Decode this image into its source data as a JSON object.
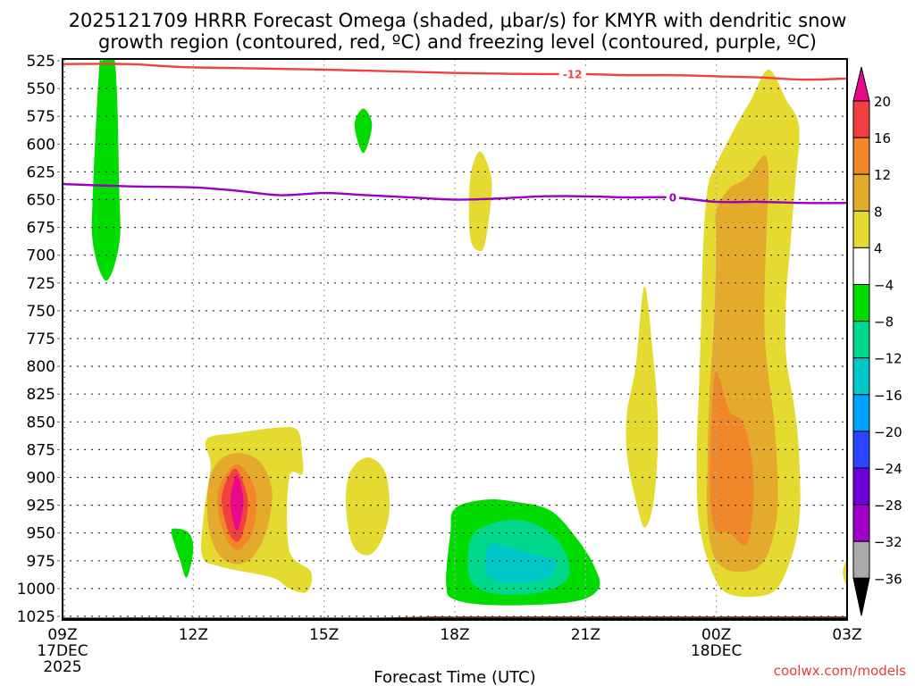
{
  "chart_data": {
    "type": "heatmap",
    "title_lines": [
      "2025121709 HRRR Forecast Omega (shaded, μbar/s) for KMYR with dendritic snow",
      "growth region (contoured, red, ºC) and freezing level (contoured, purple, ºC)"
    ],
    "xlabel": "Forecast Time (UTC)",
    "ylabel": "",
    "x_range_hours": [
      0,
      18
    ],
    "x_ticks": [
      {
        "hour": 0,
        "lines": [
          "09Z",
          "17DEC",
          "2025"
        ]
      },
      {
        "hour": 3,
        "lines": [
          "12Z"
        ]
      },
      {
        "hour": 6,
        "lines": [
          "15Z"
        ]
      },
      {
        "hour": 9,
        "lines": [
          "18Z"
        ]
      },
      {
        "hour": 12,
        "lines": [
          "21Z"
        ]
      },
      {
        "hour": 15,
        "lines": [
          "00Z",
          "18DEC"
        ]
      },
      {
        "hour": 18,
        "lines": [
          "03Z"
        ]
      }
    ],
    "y_range_hpa": [
      525,
      1030
    ],
    "y_ticks": [
      "525",
      "550",
      "575",
      "600",
      "625",
      "650",
      "675",
      "700",
      "725",
      "750",
      "775",
      "800",
      "825",
      "850",
      "875",
      "900",
      "925",
      "950",
      "975",
      "1000",
      "1025"
    ],
    "grid": true,
    "colorbar": {
      "placement": "right",
      "levels": [
        -36,
        -32,
        -28,
        -24,
        -20,
        -16,
        -12,
        -8,
        -4,
        4,
        8,
        12,
        16,
        20
      ],
      "tick_labels": [
        "20",
        "16",
        "12",
        "8",
        "4",
        "−4",
        "−8",
        "−12",
        "−16",
        "−20",
        "−24",
        "−28",
        "−32",
        "−36"
      ],
      "colors_top_to_bottom": [
        "#e8088c",
        "#f04040",
        "#f0882a",
        "#e4aa2c",
        "#e4da30",
        "#ffffff",
        "#00dc00",
        "#00d88c",
        "#00c8c8",
        "#00a0ff",
        "#2846ff",
        "#6e00dc",
        "#a000c8",
        "#aaaaaa",
        "#000000"
      ]
    },
    "regions": [
      {
        "name": "green-column-early",
        "level": -4,
        "color": "#00dc00",
        "pts": [
          [
            0.9,
            525
          ],
          [
            1.2,
            525
          ],
          [
            1.3,
            640
          ],
          [
            1.3,
            690
          ],
          [
            1.0,
            723
          ],
          [
            0.7,
            690
          ],
          [
            0.7,
            640
          ],
          [
            0.85,
            525
          ]
        ]
      },
      {
        "name": "green-diamond-16z",
        "level": -4,
        "color": "#00dc00",
        "pts": [
          [
            6.9,
            568
          ],
          [
            7.1,
            583
          ],
          [
            6.9,
            608
          ],
          [
            6.7,
            583
          ]
        ]
      },
      {
        "name": "green-blob-12z",
        "level": -4,
        "color": "#00dc00",
        "pts": [
          [
            2.9,
            950
          ],
          [
            2.6,
            946
          ],
          [
            2.5,
            950
          ],
          [
            2.7,
            975
          ],
          [
            2.85,
            990
          ],
          [
            3.0,
            965
          ]
        ]
      },
      {
        "name": "yellow-18z-mid",
        "level": 4,
        "color": "#e4da30",
        "pts": [
          [
            9.55,
            607
          ],
          [
            9.75,
            618
          ],
          [
            9.85,
            640
          ],
          [
            9.7,
            688
          ],
          [
            9.55,
            696
          ],
          [
            9.35,
            683
          ],
          [
            9.35,
            632
          ]
        ]
      },
      {
        "name": "yellow-13z",
        "level": 4,
        "color": "#e4da30",
        "pts": [
          [
            3.3,
            866
          ],
          [
            4.0,
            860
          ],
          [
            5.0,
            855
          ],
          [
            5.4,
            858
          ],
          [
            5.5,
            880
          ],
          [
            5.5,
            897
          ],
          [
            5.2,
            900
          ],
          [
            5.2,
            965
          ],
          [
            5.7,
            985
          ],
          [
            5.6,
            1003
          ],
          [
            5.2,
            1000
          ],
          [
            4.8,
            990
          ],
          [
            3.6,
            980
          ],
          [
            3.2,
            970
          ],
          [
            3.25,
            930
          ],
          [
            3.4,
            890
          ]
        ]
      },
      {
        "name": "orange1-13z",
        "level": 8,
        "color": "#e4aa2c",
        "pts": [
          [
            4.0,
            878
          ],
          [
            4.5,
            885
          ],
          [
            4.8,
            910
          ],
          [
            4.7,
            945
          ],
          [
            4.4,
            970
          ],
          [
            4.0,
            978
          ],
          [
            3.6,
            970
          ],
          [
            3.35,
            945
          ],
          [
            3.35,
            905
          ],
          [
            3.6,
            885
          ]
        ]
      },
      {
        "name": "orange2-13z",
        "level": 12,
        "color": "#f0882a",
        "pts": [
          [
            4.0,
            888
          ],
          [
            4.3,
            900
          ],
          [
            4.45,
            920
          ],
          [
            4.35,
            950
          ],
          [
            4.0,
            965
          ],
          [
            3.7,
            950
          ],
          [
            3.55,
            920
          ],
          [
            3.7,
            900
          ]
        ]
      },
      {
        "name": "red-13z",
        "level": 16,
        "color": "#f04040",
        "pts": [
          [
            4.0,
            893
          ],
          [
            4.25,
            920
          ],
          [
            4.15,
            948
          ],
          [
            4.0,
            958
          ],
          [
            3.8,
            948
          ],
          [
            3.65,
            920
          ],
          [
            3.8,
            900
          ]
        ]
      },
      {
        "name": "magenta-13z",
        "level": 20,
        "color": "#e8088c",
        "pts": [
          [
            4.0,
            898
          ],
          [
            4.15,
            922
          ],
          [
            4.0,
            948
          ],
          [
            3.85,
            922
          ]
        ]
      },
      {
        "name": "yellow-16z-low",
        "level": 4,
        "color": "#e4da30",
        "pts": [
          [
            7.0,
            882
          ],
          [
            7.4,
            895
          ],
          [
            7.5,
            930
          ],
          [
            7.3,
            958
          ],
          [
            7.0,
            970
          ],
          [
            6.65,
            960
          ],
          [
            6.5,
            925
          ],
          [
            6.6,
            895
          ]
        ]
      },
      {
        "name": "yellow-22z",
        "level": 4,
        "color": "#e4da30",
        "pts": [
          [
            13.35,
            728
          ],
          [
            13.55,
            790
          ],
          [
            13.65,
            840
          ],
          [
            13.65,
            880
          ],
          [
            13.55,
            925
          ],
          [
            13.35,
            945
          ],
          [
            13.15,
            920
          ],
          [
            12.95,
            880
          ],
          [
            12.95,
            842
          ],
          [
            13.15,
            800
          ]
        ]
      },
      {
        "name": "green-19z",
        "level": -4,
        "color": "#00dc00",
        "pts": [
          [
            9.0,
            928
          ],
          [
            9.7,
            920
          ],
          [
            10.4,
            922
          ],
          [
            11.2,
            930
          ],
          [
            11.8,
            955
          ],
          [
            12.2,
            980
          ],
          [
            12.3,
            1000
          ],
          [
            11.7,
            1012
          ],
          [
            10.0,
            1015
          ],
          [
            9.0,
            1010
          ],
          [
            8.8,
            995
          ],
          [
            8.9,
            950
          ]
        ]
      },
      {
        "name": "teal-19z",
        "level": -8,
        "color": "#00d88c",
        "pts": [
          [
            9.5,
            948
          ],
          [
            10.3,
            938
          ],
          [
            11.0,
            945
          ],
          [
            11.5,
            965
          ],
          [
            11.6,
            990
          ],
          [
            11.0,
            1003
          ],
          [
            10.0,
            1005
          ],
          [
            9.4,
            995
          ],
          [
            9.3,
            970
          ]
        ]
      },
      {
        "name": "cyan-19z",
        "level": -12,
        "color": "#00c8c8",
        "pts": [
          [
            9.85,
            960
          ],
          [
            10.7,
            968
          ],
          [
            11.3,
            975
          ],
          [
            11.15,
            990
          ],
          [
            10.4,
            995
          ],
          [
            9.8,
            990
          ],
          [
            9.7,
            975
          ]
        ]
      },
      {
        "name": "yellow-00z",
        "level": 4,
        "color": "#e4da30",
        "pts": [
          [
            16.2,
            533
          ],
          [
            16.6,
            560
          ],
          [
            16.9,
            585
          ],
          [
            16.8,
            640
          ],
          [
            16.7,
            690
          ],
          [
            16.6,
            740
          ],
          [
            16.6,
            790
          ],
          [
            16.8,
            840
          ],
          [
            16.9,
            880
          ],
          [
            16.9,
            940
          ],
          [
            16.6,
            985
          ],
          [
            16.2,
            1005
          ],
          [
            15.3,
            1005
          ],
          [
            14.9,
            985
          ],
          [
            14.6,
            940
          ],
          [
            14.55,
            880
          ],
          [
            14.6,
            820
          ],
          [
            14.65,
            760
          ],
          [
            14.7,
            690
          ],
          [
            14.8,
            640
          ],
          [
            15.0,
            618
          ],
          [
            15.5,
            580
          ],
          [
            15.8,
            560
          ]
        ]
      },
      {
        "name": "orange1-00z",
        "level": 8,
        "color": "#e4aa2c",
        "pts": [
          [
            16.1,
            610
          ],
          [
            16.2,
            630
          ],
          [
            16.15,
            680
          ],
          [
            16.1,
            760
          ],
          [
            16.2,
            810
          ],
          [
            16.35,
            860
          ],
          [
            16.4,
            930
          ],
          [
            16.1,
            975
          ],
          [
            15.5,
            985
          ],
          [
            15.0,
            975
          ],
          [
            14.8,
            940
          ],
          [
            14.8,
            880
          ],
          [
            14.85,
            820
          ],
          [
            14.95,
            760
          ],
          [
            15.0,
            690
          ],
          [
            15.0,
            660
          ],
          [
            15.3,
            640
          ],
          [
            15.7,
            630
          ]
        ]
      },
      {
        "name": "orange2-00z",
        "level": 12,
        "color": "#f0882a",
        "pts": [
          [
            15.0,
            805
          ],
          [
            15.3,
            840
          ],
          [
            15.6,
            850
          ],
          [
            15.8,
            880
          ],
          [
            15.85,
            920
          ],
          [
            15.7,
            960
          ],
          [
            15.3,
            950
          ],
          [
            14.95,
            945
          ],
          [
            14.85,
            900
          ],
          [
            14.9,
            840
          ]
        ]
      },
      {
        "name": "yellow-edge-03z",
        "level": 4,
        "color": "#e4da30",
        "pts": [
          [
            18.0,
            975
          ],
          [
            17.9,
            985
          ],
          [
            18.0,
            998
          ]
        ]
      }
    ],
    "contours": [
      {
        "name": "dendritic-snow-growth",
        "value": -12,
        "label": "-12",
        "color": "#f04040",
        "label_hour": 11.7,
        "pts": [
          [
            0,
            528
          ],
          [
            1.5,
            528
          ],
          [
            3,
            531
          ],
          [
            6,
            533
          ],
          [
            9,
            536
          ],
          [
            11,
            537
          ],
          [
            12,
            537
          ],
          [
            13,
            538
          ],
          [
            14,
            538
          ],
          [
            15,
            539
          ],
          [
            16,
            540
          ],
          [
            17,
            542
          ],
          [
            18,
            541
          ]
        ]
      },
      {
        "name": "freezing-level",
        "value": 0,
        "label": "0",
        "color": "#9a00c0",
        "label_hour": 14.0,
        "pts": [
          [
            0,
            636
          ],
          [
            1.5,
            638
          ],
          [
            3,
            639
          ],
          [
            4,
            642
          ],
          [
            5,
            646
          ],
          [
            6,
            644
          ],
          [
            7,
            646
          ],
          [
            8,
            648
          ],
          [
            9,
            650
          ],
          [
            10,
            649
          ],
          [
            11,
            647
          ],
          [
            12,
            647
          ],
          [
            13,
            648
          ],
          [
            14,
            648
          ],
          [
            15,
            652
          ],
          [
            16,
            652
          ],
          [
            17,
            653
          ],
          [
            18,
            653
          ]
        ]
      }
    ],
    "terrain": {
      "color": "#a0522d",
      "pts": [
        [
          0,
          1027
        ],
        [
          1.5,
          1026
        ],
        [
          2.5,
          1026
        ],
        [
          3,
          1027
        ],
        [
          6,
          1027
        ],
        [
          7.5,
          1026
        ],
        [
          8.5,
          1025
        ],
        [
          9,
          1025
        ],
        [
          18,
          1025
        ]
      ]
    }
  },
  "credit": "coolwx.com/models"
}
